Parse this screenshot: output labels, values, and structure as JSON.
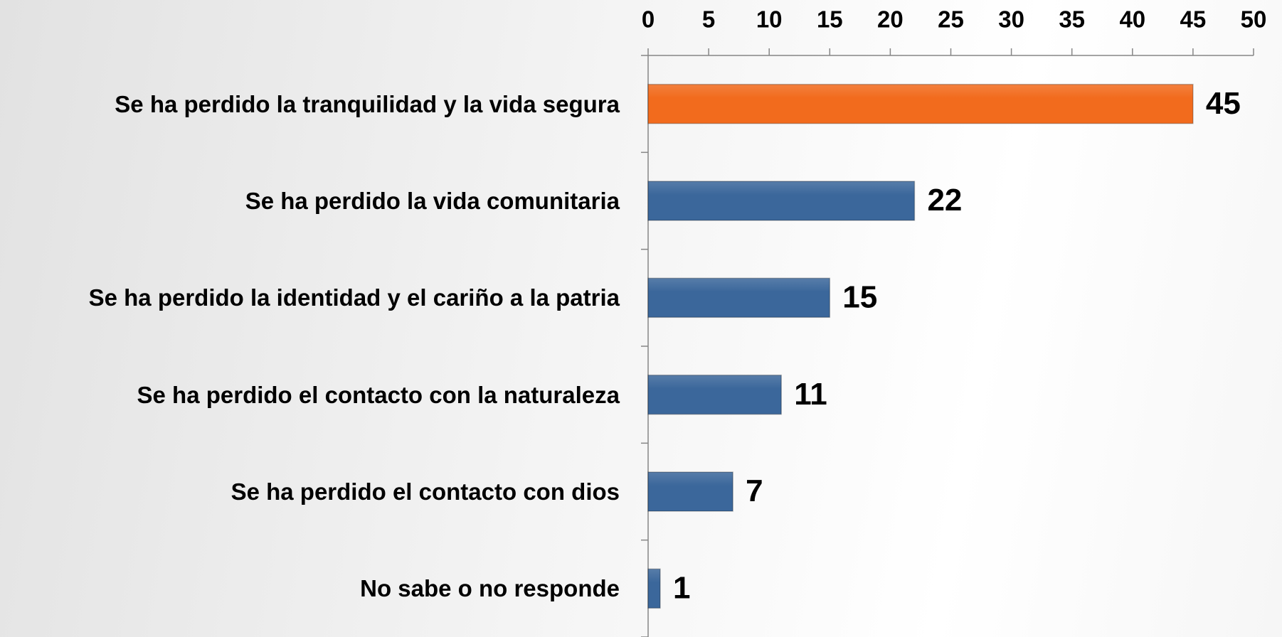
{
  "chart_data": {
    "type": "bar",
    "orientation": "horizontal",
    "categories": [
      "Se ha perdido la tranquilidad y la vida segura",
      "Se ha perdido la vida comunitaria",
      "Se ha perdido la identidad y el cariño a la patria",
      "Se ha perdido el contacto con la naturaleza",
      "Se ha perdido el contacto con dios",
      "No sabe o no responde"
    ],
    "values": [
      45,
      22,
      15,
      11,
      7,
      1
    ],
    "colors": [
      "#f26b1d",
      "#3b679b",
      "#3b679b",
      "#3b679b",
      "#3b679b",
      "#3b679b"
    ],
    "xlim": [
      0,
      50
    ],
    "xticks": [
      0,
      5,
      10,
      15,
      20,
      25,
      30,
      35,
      40,
      45,
      50
    ],
    "x_axis_position": "top",
    "grid": false
  }
}
